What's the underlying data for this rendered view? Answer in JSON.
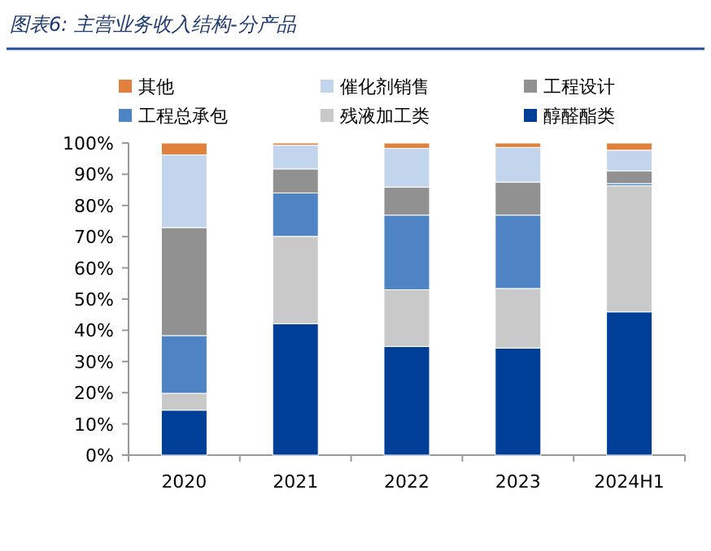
{
  "chart_data": {
    "type": "bar",
    "title": "图表6:  主营业务收入结构-分产品",
    "stacked": true,
    "legend": "top",
    "categories": [
      "2020",
      "2021",
      "2022",
      "2023",
      "2024H1"
    ],
    "series": [
      {
        "name": "醇醛酯类",
        "color": "#003f98",
        "values": [
          14.4,
          42.1,
          34.8,
          34.3,
          45.9
        ]
      },
      {
        "name": "残液加工类",
        "color": "#c9c9c9",
        "values": [
          5.4,
          28.0,
          18.2,
          19.1,
          40.4
        ]
      },
      {
        "name": "工程总承包",
        "color": "#4e84c4",
        "values": [
          18.5,
          13.9,
          23.9,
          23.5,
          0.7
        ]
      },
      {
        "name": "工程设计",
        "color": "#919191",
        "values": [
          34.6,
          7.7,
          9.0,
          10.6,
          4.1
        ]
      },
      {
        "name": "催化剂销售",
        "color": "#c3d5ec",
        "values": [
          23.3,
          7.6,
          12.4,
          11.1,
          6.6
        ]
      },
      {
        "name": "其他",
        "color": "#e0823e",
        "values": [
          3.8,
          0.7,
          1.7,
          1.4,
          2.3
        ]
      }
    ],
    "ylim": [
      0,
      100
    ],
    "yticks": [
      {
        "value": 0,
        "label": "0%"
      },
      {
        "value": 10,
        "label": "10%"
      },
      {
        "value": 20,
        "label": "20%"
      },
      {
        "value": 30,
        "label": "30%"
      },
      {
        "value": 40,
        "label": "40%"
      },
      {
        "value": 50,
        "label": "50%"
      },
      {
        "value": 60,
        "label": "60%"
      },
      {
        "value": 70,
        "label": "70%"
      },
      {
        "value": 80,
        "label": "80%"
      },
      {
        "value": 90,
        "label": "90%"
      },
      {
        "value": 100,
        "label": "100%"
      }
    ]
  }
}
